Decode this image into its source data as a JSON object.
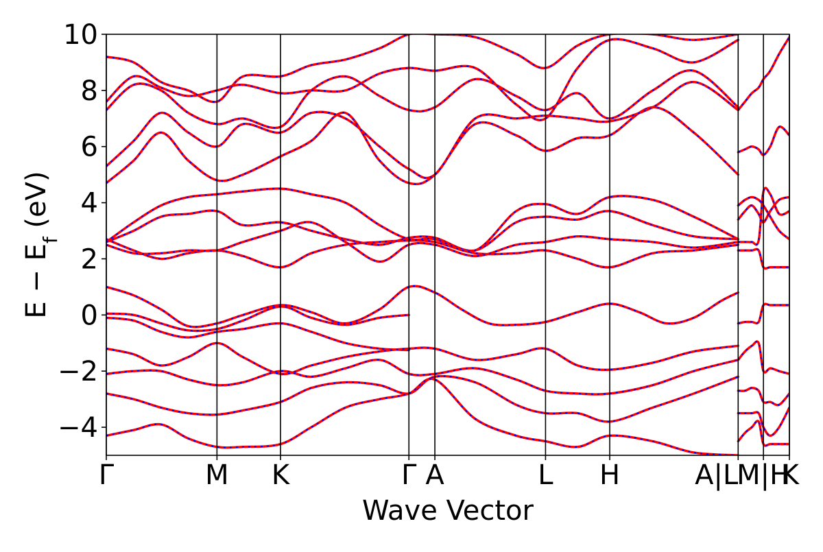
{
  "chart_data": {
    "type": "line",
    "title": "",
    "xlabel": "Wave Vector",
    "ylabel": "E − E_f (eV)",
    "ylabel_parts": {
      "main": "E  −  E",
      "sub": "f",
      "tail": " (eV)"
    },
    "ylim": [
      -5,
      10
    ],
    "xlim": [
      0,
      1
    ],
    "yticks": [
      -4,
      -2,
      0,
      2,
      4,
      6,
      8,
      10
    ],
    "ytick_labels": [
      "−4",
      "−2",
      "0",
      "2",
      "4",
      "6",
      "8",
      "10"
    ],
    "kpoints": [
      {
        "label": "Γ",
        "x": 0.0
      },
      {
        "label": "M",
        "x": 0.162
      },
      {
        "label": "K",
        "x": 0.255
      },
      {
        "label": "Γ",
        "x": 0.443
      },
      {
        "label": "A",
        "x": 0.481
      },
      {
        "label": "L",
        "x": 0.643
      },
      {
        "label": "H",
        "x": 0.737
      },
      {
        "label": "A|L",
        "x": 0.925
      },
      {
        "label": "M|H",
        "x": 0.962
      },
      {
        "label": "K",
        "x": 1.0
      }
    ],
    "grid": false,
    "legend": "none",
    "colors": {
      "line_primary": "#ff0000",
      "line_secondary": "#0000ff",
      "frame": "#000000"
    },
    "series": [
      {
        "x": [
          0.0,
          0.04,
          0.08,
          0.12,
          0.162,
          0.2,
          0.255,
          0.3,
          0.35,
          0.4,
          0.443,
          0.481,
          0.52,
          0.56,
          0.6,
          0.643,
          0.69,
          0.737,
          0.78,
          0.82,
          0.86,
          0.9,
          0.925
        ],
        "y": [
          1.0,
          0.7,
          0.2,
          -0.4,
          -0.3,
          0.0,
          0.35,
          0.1,
          -0.3,
          0.2,
          1.0,
          0.8,
          0.2,
          -0.3,
          -0.35,
          -0.25,
          0.1,
          0.4,
          0.1,
          -0.3,
          -0.1,
          0.5,
          0.8
        ]
      },
      {
        "x": [
          0.0,
          0.04,
          0.08,
          0.12,
          0.162,
          0.2,
          0.255,
          0.3,
          0.35,
          0.4,
          0.443
        ],
        "y": [
          0.05,
          0.0,
          -0.3,
          -0.55,
          -0.5,
          -0.2,
          0.3,
          -0.1,
          -0.35,
          -0.1,
          0.0
        ]
      },
      {
        "x": [
          0.0,
          0.04,
          0.08,
          0.12,
          0.162,
          0.2,
          0.255,
          0.3,
          0.35,
          0.4,
          0.443
        ],
        "y": [
          -0.1,
          -0.2,
          -0.6,
          -0.8,
          -0.6,
          -0.5,
          -0.3,
          -0.6,
          -1.0,
          -1.2,
          -1.25
        ]
      },
      {
        "x": [
          0.0,
          0.04,
          0.08,
          0.12,
          0.162,
          0.2,
          0.255,
          0.3,
          0.35,
          0.4,
          0.443,
          0.481,
          0.54,
          0.6,
          0.643,
          0.69,
          0.737,
          0.8,
          0.86,
          0.925
        ],
        "y": [
          -1.2,
          -1.4,
          -1.8,
          -1.5,
          -1.0,
          -1.5,
          -2.1,
          -1.8,
          -1.5,
          -1.3,
          -1.2,
          -1.2,
          -1.6,
          -1.4,
          -1.2,
          -1.8,
          -1.95,
          -1.7,
          -1.3,
          -1.1
        ]
      },
      {
        "x": [
          0.0,
          0.04,
          0.08,
          0.12,
          0.162,
          0.2,
          0.255,
          0.3,
          0.35,
          0.4,
          0.443,
          0.481,
          0.54,
          0.6,
          0.643,
          0.69,
          0.737,
          0.8,
          0.86,
          0.925
        ],
        "y": [
          -2.1,
          -2.0,
          -2.0,
          -2.3,
          -2.5,
          -2.4,
          -2.0,
          -2.2,
          -1.9,
          -1.6,
          -2.1,
          -2.1,
          -1.9,
          -2.3,
          -2.7,
          -2.8,
          -2.8,
          -2.5,
          -2.0,
          -1.6
        ]
      },
      {
        "x": [
          0.0,
          0.04,
          0.08,
          0.12,
          0.162,
          0.2,
          0.255,
          0.3,
          0.35,
          0.4,
          0.443,
          0.481,
          0.54,
          0.6,
          0.643,
          0.69,
          0.737,
          0.8,
          0.86,
          0.925
        ],
        "y": [
          -2.8,
          -3.0,
          -3.3,
          -3.5,
          -3.55,
          -3.4,
          -3.1,
          -2.6,
          -2.4,
          -2.5,
          -2.8,
          -2.2,
          -2.4,
          -3.2,
          -3.5,
          -3.5,
          -3.8,
          -3.3,
          -2.8,
          -2.2
        ]
      },
      {
        "x": [
          0.0,
          0.04,
          0.08,
          0.12,
          0.162,
          0.2,
          0.255,
          0.3,
          0.35,
          0.4,
          0.443,
          0.481,
          0.54,
          0.6,
          0.643,
          0.69,
          0.737,
          0.8,
          0.86,
          0.925
        ],
        "y": [
          -4.3,
          -4.1,
          -3.9,
          -4.4,
          -4.7,
          -4.7,
          -4.6,
          -4.0,
          -3.3,
          -3.0,
          -2.8,
          -2.3,
          -3.7,
          -4.3,
          -4.5,
          -4.7,
          -4.3,
          -4.5,
          -4.9,
          -5.0
        ]
      },
      {
        "x": [
          0.0,
          0.04,
          0.08,
          0.12,
          0.162,
          0.2,
          0.255,
          0.3,
          0.35,
          0.4,
          0.443,
          0.481,
          0.54,
          0.6,
          0.643,
          0.69,
          0.737,
          0.8,
          0.86,
          0.925
        ],
        "y": [
          2.7,
          2.3,
          2.0,
          2.2,
          2.3,
          2.1,
          1.7,
          2.2,
          2.5,
          2.6,
          2.65,
          2.6,
          2.2,
          2.2,
          2.3,
          2.0,
          1.7,
          2.2,
          2.3,
          2.5
        ]
      },
      {
        "x": [
          0.0,
          0.04,
          0.08,
          0.12,
          0.162,
          0.2,
          0.255,
          0.3,
          0.35,
          0.4,
          0.443,
          0.481,
          0.54,
          0.6,
          0.643,
          0.69,
          0.737,
          0.8,
          0.86,
          0.925
        ],
        "y": [
          2.5,
          2.2,
          2.2,
          2.3,
          2.3,
          2.6,
          3.0,
          3.3,
          2.6,
          1.9,
          2.5,
          2.5,
          2.1,
          2.5,
          2.6,
          2.8,
          2.7,
          2.6,
          2.4,
          2.6
        ]
      },
      {
        "x": [
          0.0,
          0.04,
          0.08,
          0.12,
          0.162,
          0.2,
          0.255,
          0.3,
          0.35,
          0.4,
          0.443,
          0.481,
          0.54,
          0.6,
          0.643,
          0.69,
          0.737,
          0.8,
          0.86,
          0.925
        ],
        "y": [
          2.6,
          3.0,
          3.5,
          3.6,
          3.7,
          3.2,
          3.3,
          3.0,
          2.7,
          2.5,
          2.75,
          2.75,
          2.3,
          3.3,
          3.5,
          3.4,
          3.7,
          3.2,
          2.8,
          2.7
        ]
      },
      {
        "x": [
          0.0,
          0.04,
          0.08,
          0.12,
          0.162,
          0.2,
          0.255,
          0.3,
          0.35,
          0.4,
          0.443,
          0.481,
          0.54,
          0.6,
          0.643,
          0.69,
          0.737,
          0.8,
          0.86,
          0.925
        ],
        "y": [
          2.6,
          3.3,
          3.9,
          4.2,
          4.3,
          4.4,
          4.5,
          4.3,
          4.0,
          3.2,
          2.7,
          2.7,
          2.3,
          3.7,
          3.95,
          3.6,
          4.2,
          4.1,
          3.5,
          2.7
        ]
      },
      {
        "x": [
          0.0,
          0.04,
          0.08,
          0.12,
          0.162,
          0.2,
          0.255,
          0.3,
          0.35,
          0.4,
          0.443,
          0.481,
          0.54,
          0.6,
          0.643,
          0.69,
          0.737,
          0.8,
          0.86,
          0.925
        ],
        "y": [
          4.7,
          5.5,
          6.5,
          5.5,
          4.8,
          5.0,
          5.65,
          6.2,
          7.2,
          5.5,
          4.7,
          5.0,
          6.8,
          6.4,
          5.85,
          6.3,
          6.4,
          7.4,
          6.5,
          5.0
        ]
      },
      {
        "x": [
          0.0,
          0.04,
          0.08,
          0.12,
          0.162,
          0.2,
          0.255,
          0.3,
          0.35,
          0.4,
          0.443,
          0.481,
          0.54,
          0.6,
          0.643,
          0.69,
          0.737,
          0.8,
          0.86,
          0.925
        ],
        "y": [
          5.3,
          6.2,
          7.2,
          6.5,
          6.0,
          6.8,
          6.5,
          7.2,
          7.0,
          6.0,
          5.2,
          5.0,
          7.0,
          7.0,
          7.1,
          7.0,
          6.9,
          7.4,
          8.3,
          7.3
        ]
      },
      {
        "x": [
          0.0,
          0.04,
          0.08,
          0.12,
          0.162,
          0.2,
          0.255,
          0.3,
          0.35,
          0.4,
          0.443,
          0.481,
          0.54,
          0.6,
          0.643,
          0.69,
          0.737,
          0.8,
          0.86,
          0.925
        ],
        "y": [
          7.3,
          8.2,
          8.0,
          7.2,
          6.8,
          7.0,
          6.7,
          8.0,
          8.5,
          7.8,
          7.3,
          7.4,
          8.4,
          7.8,
          7.3,
          7.9,
          7.0,
          8.0,
          8.7,
          7.4
        ]
      },
      {
        "x": [
          0.0,
          0.04,
          0.08,
          0.12,
          0.162,
          0.2,
          0.255,
          0.3,
          0.35,
          0.4,
          0.443,
          0.481,
          0.54,
          0.6,
          0.643,
          0.69,
          0.737,
          0.8,
          0.86,
          0.925
        ],
        "y": [
          7.6,
          8.5,
          8.1,
          7.8,
          8.0,
          8.2,
          7.9,
          8.0,
          8.0,
          8.6,
          8.8,
          8.7,
          8.8,
          7.5,
          7.0,
          8.8,
          9.8,
          9.5,
          9.0,
          9.8
        ]
      },
      {
        "x": [
          0.0,
          0.04,
          0.08,
          0.12,
          0.162,
          0.2,
          0.255,
          0.3,
          0.35,
          0.4,
          0.443,
          0.481,
          0.54,
          0.6,
          0.643,
          0.69,
          0.737,
          0.8,
          0.86,
          0.925
        ],
        "y": [
          9.2,
          9.0,
          8.3,
          8.0,
          7.6,
          8.5,
          8.5,
          8.9,
          9.1,
          9.5,
          10.0,
          10.0,
          9.9,
          9.3,
          8.8,
          9.6,
          10.0,
          10.0,
          9.8,
          10.0
        ]
      },
      {
        "x": [
          0.925,
          0.935,
          0.945,
          0.955,
          0.962,
          0.972,
          0.985,
          1.0
        ],
        "y": [
          5.8,
          5.9,
          6.0,
          5.9,
          5.7,
          6.0,
          6.7,
          6.4
        ]
      },
      {
        "x": [
          0.925,
          0.935,
          0.945,
          0.955,
          0.962,
          0.972,
          0.985,
          1.0
        ],
        "y": [
          3.9,
          4.1,
          4.2,
          4.1,
          3.9,
          3.5,
          3.0,
          2.7
        ]
      },
      {
        "x": [
          0.925,
          0.935,
          0.945,
          0.955,
          0.962,
          0.972,
          0.985,
          1.0
        ],
        "y": [
          3.4,
          3.7,
          3.9,
          3.6,
          3.3,
          3.7,
          4.1,
          4.2
        ]
      },
      {
        "x": [
          0.925,
          0.935,
          0.945,
          0.955,
          0.962,
          0.972,
          0.985,
          1.0
        ],
        "y": [
          7.3,
          7.6,
          7.9,
          8.1,
          8.4,
          8.7,
          9.3,
          9.9
        ]
      },
      {
        "x": [
          0.925,
          0.935,
          0.945,
          0.955,
          0.962,
          0.972,
          0.985,
          1.0
        ],
        "y": [
          -0.3,
          -0.25,
          -0.25,
          -0.25,
          0.35,
          0.35,
          0.35,
          0.35
        ]
      },
      {
        "x": [
          0.925,
          0.935,
          0.945,
          0.955,
          0.962,
          0.972,
          0.985,
          1.0
        ],
        "y": [
          -1.6,
          -1.3,
          -1.1,
          -1.0,
          -2.0,
          -1.9,
          -2.0,
          -2.1
        ]
      },
      {
        "x": [
          0.925,
          0.935,
          0.945,
          0.955,
          0.962,
          0.972,
          0.985,
          1.0
        ],
        "y": [
          -2.7,
          -2.7,
          -2.6,
          -2.7,
          -3.1,
          -3.1,
          -3.2,
          -2.8
        ]
      },
      {
        "x": [
          0.925,
          0.935,
          0.945,
          0.955,
          0.962,
          0.972,
          0.985,
          1.0
        ],
        "y": [
          -3.5,
          -3.5,
          -3.5,
          -3.5,
          -4.0,
          -4.3,
          -4.0,
          -3.3
        ]
      },
      {
        "x": [
          0.925,
          0.935,
          0.945,
          0.955,
          0.962,
          0.972,
          0.985,
          1.0
        ],
        "y": [
          -4.5,
          -4.2,
          -4.0,
          -3.8,
          -4.6,
          -4.6,
          -4.6,
          -4.6
        ]
      },
      {
        "x": [
          0.925,
          0.935,
          0.945,
          0.955,
          0.962,
          0.972,
          0.985,
          1.0
        ],
        "y": [
          2.3,
          2.3,
          2.3,
          2.3,
          1.7,
          1.7,
          1.7,
          1.7
        ]
      },
      {
        "x": [
          0.925,
          0.935,
          0.945,
          0.955,
          0.962,
          0.972,
          0.985,
          1.0
        ],
        "y": [
          2.6,
          2.6,
          2.6,
          2.65,
          4.4,
          4.3,
          3.6,
          3.7
        ]
      }
    ]
  }
}
